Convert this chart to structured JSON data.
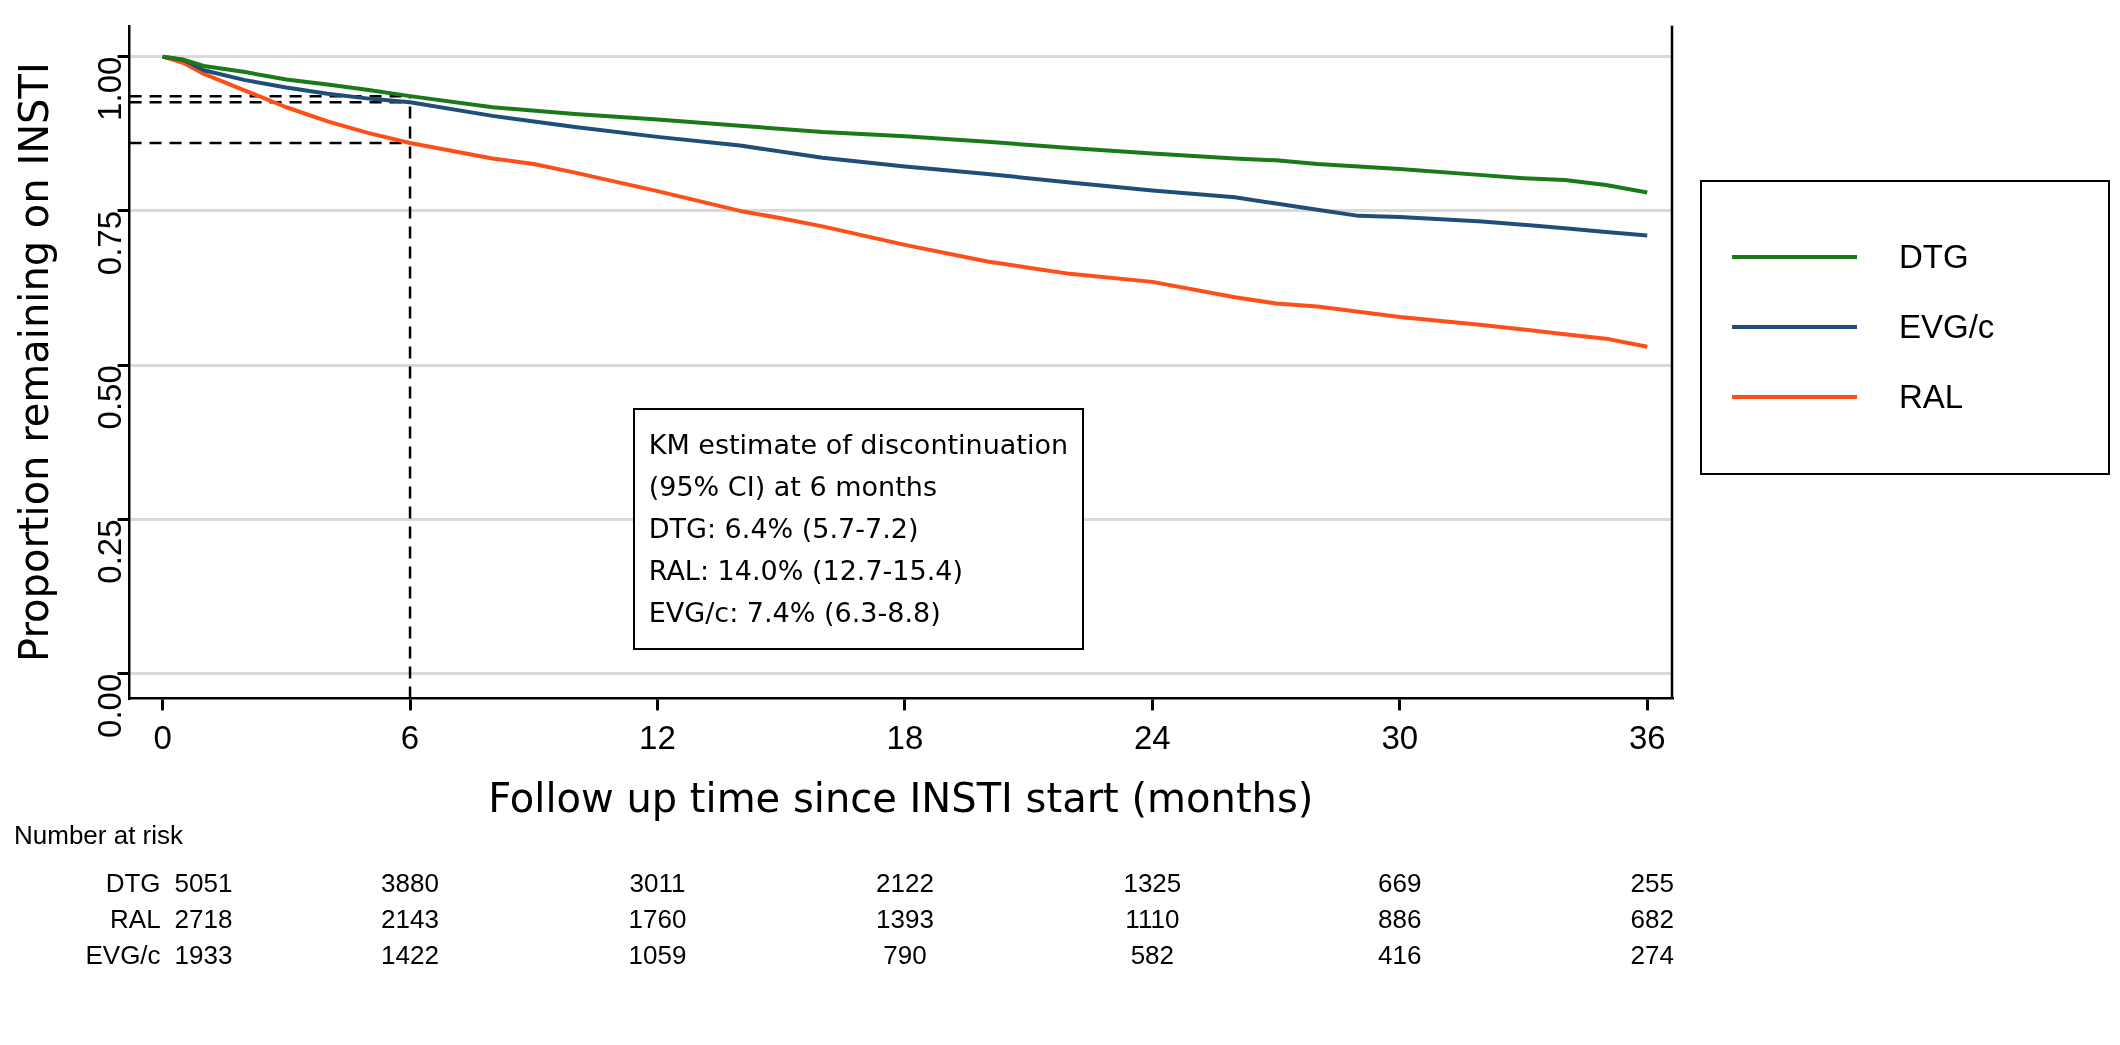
{
  "chart_data": {
    "type": "line",
    "xlabel": "Follow up time since INSTI start (months)",
    "ylabel": "Proportion remaining on INSTI",
    "xlim": [
      -0.8,
      36.6
    ],
    "ylim": [
      -0.04,
      1.05
    ],
    "xticks": [
      0,
      6,
      12,
      18,
      24,
      30,
      36
    ],
    "yticks": [
      {
        "value": 0,
        "label": "0.00"
      },
      {
        "value": 0.25,
        "label": "0.25"
      },
      {
        "value": 0.5,
        "label": "0.50"
      },
      {
        "value": 0.75,
        "label": "0.75"
      },
      {
        "value": 1,
        "label": "1.00"
      }
    ],
    "grid": "y",
    "legend": "right",
    "marker": "none",
    "line_style": "solid",
    "series": [
      {
        "name": "DTG",
        "color": "#1a7a1a",
        "x": [
          0,
          0.5,
          1,
          2,
          3,
          4,
          5,
          6,
          8,
          10,
          12,
          14,
          16,
          18,
          20,
          22,
          24,
          26,
          27,
          28,
          30,
          32,
          33,
          34,
          35,
          36
        ],
        "values": [
          1,
          0.995,
          0.985,
          0.975,
          0.963,
          0.955,
          0.946,
          0.936,
          0.918,
          0.907,
          0.898,
          0.888,
          0.878,
          0.871,
          0.862,
          0.852,
          0.843,
          0.835,
          0.832,
          0.826,
          0.818,
          0.808,
          0.803,
          0.8,
          0.792,
          0.78
        ]
      },
      {
        "name": "EVG/c",
        "color": "#1f4e79",
        "x": [
          0,
          0.5,
          1,
          2,
          3,
          4,
          5,
          6,
          8,
          10,
          12,
          14,
          16,
          18,
          20,
          22,
          24,
          26,
          27,
          28,
          29,
          30,
          32,
          34,
          35,
          36
        ],
        "values": [
          1,
          0.995,
          0.978,
          0.962,
          0.95,
          0.94,
          0.932,
          0.926,
          0.904,
          0.886,
          0.87,
          0.856,
          0.836,
          0.822,
          0.81,
          0.796,
          0.783,
          0.772,
          0.762,
          0.752,
          0.742,
          0.74,
          0.733,
          0.722,
          0.716,
          0.71
        ]
      },
      {
        "name": "RAL",
        "color": "#ff4f19",
        "x": [
          0,
          0.5,
          1,
          2,
          3,
          4,
          5,
          6,
          8,
          9,
          10,
          12,
          14,
          15,
          16,
          18,
          20,
          21,
          22,
          24,
          26,
          27,
          28,
          30,
          32,
          33,
          34,
          35,
          36
        ],
        "values": [
          1,
          0.99,
          0.972,
          0.945,
          0.918,
          0.895,
          0.876,
          0.86,
          0.835,
          0.826,
          0.812,
          0.782,
          0.75,
          0.738,
          0.725,
          0.695,
          0.668,
          0.658,
          0.648,
          0.635,
          0.61,
          0.6,
          0.595,
          0.578,
          0.565,
          0.558,
          0.55,
          0.543,
          0.53
        ]
      }
    ],
    "ref_lines": [
      {
        "axis": "x",
        "value": 6,
        "color": "#000000",
        "line_style": "dashed"
      },
      {
        "axis": "y",
        "value": 0.936,
        "color": "#000000",
        "line_style": "dashed"
      },
      {
        "axis": "y",
        "value": 0.926,
        "color": "#000000",
        "line_style": "dashed"
      },
      {
        "axis": "y",
        "value": 0.86,
        "color": "#000000",
        "line_style": "dashed"
      }
    ],
    "annotations": [
      "KM estimate of discontinuation\n(95% CI) at 6 months\nDTG: 6.4% (5.7-7.2)\nRAL: 14.0% (12.7-15.4)\nEVG/c: 7.4% (6.3-8.8)",
      "Number at risk",
      "DTG 5051 3880 3011 2122 1325 669 255",
      "RAL 2718 2143 1760 1393 1110 886 682",
      "EVG/c 1933 1422 1059 790 582 416 274"
    ]
  }
}
